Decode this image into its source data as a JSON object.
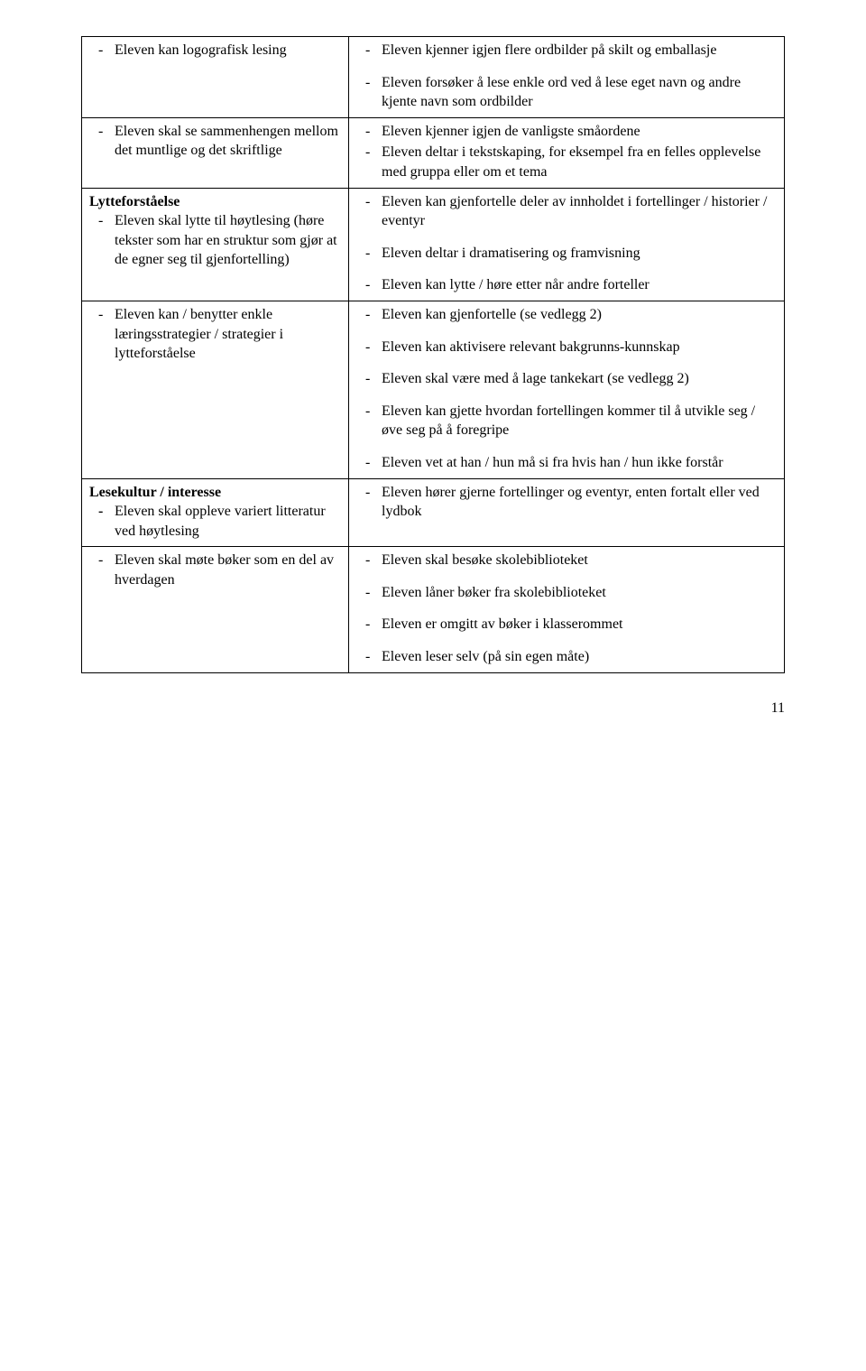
{
  "rows": [
    {
      "left": {
        "items": [
          {
            "text": "Eleven kan logografisk lesing"
          }
        ]
      },
      "right": {
        "items": [
          {
            "text": "Eleven kjenner igjen flere ordbilder på skilt og emballasje"
          },
          {
            "text": "Eleven forsøker å lese enkle ord ved å lese eget navn og andre kjente navn som ordbilder",
            "spaced": true
          }
        ]
      }
    },
    {
      "left": {
        "items": [
          {
            "text": "Eleven skal se sammenhengen mellom det muntlige og det skriftlige"
          }
        ]
      },
      "right": {
        "items": [
          {
            "text": "Eleven kjenner igjen de vanligste småordene"
          },
          {
            "text": "Eleven deltar i tekstskaping, for eksempel fra en felles opplevelse med gruppa eller om et tema"
          }
        ]
      }
    },
    {
      "heading": "Lytteforståelse",
      "left": {
        "items": [
          {
            "text": "Eleven skal lytte til høytlesing (høre tekster som har en struktur som gjør at de egner seg til gjenfortelling)"
          }
        ]
      },
      "right": {
        "items": [
          {
            "text": "Eleven kan gjenfortelle deler av innholdet i fortellinger / historier / eventyr"
          },
          {
            "text": "Eleven deltar i dramatisering og framvisning",
            "spaced": true
          },
          {
            "text": "Eleven kan lytte / høre etter når andre forteller",
            "spaced": true
          }
        ]
      }
    },
    {
      "left": {
        "items": [
          {
            "text": "Eleven kan / benytter enkle læringsstrategier / strategier i lytteforståelse"
          }
        ]
      },
      "right": {
        "items": [
          {
            "text": "Eleven kan gjenfortelle (se vedlegg 2)"
          },
          {
            "text": "Eleven kan aktivisere relevant bakgrunns-kunnskap",
            "spaced": true
          },
          {
            "text": "Eleven skal være med å lage tankekart (se vedlegg 2)",
            "spaced": true
          },
          {
            "text": "Eleven kan gjette hvordan fortellingen kommer til å utvikle seg / øve seg på å foregripe",
            "spaced": true
          },
          {
            "text": "Eleven vet at han / hun må si fra hvis han / hun ikke forstår",
            "spaced": true
          }
        ]
      }
    },
    {
      "heading": "Lesekultur / interesse",
      "left": {
        "items": [
          {
            "text": "Eleven skal oppleve variert litteratur ved høytlesing",
            "bold": true
          }
        ]
      },
      "right": {
        "items": [
          {
            "text": "Eleven hører gjerne fortellinger og eventyr, enten fortalt eller ved lydbok"
          }
        ]
      }
    },
    {
      "left": {
        "items": [
          {
            "text": "Eleven skal møte bøker som en del av hverdagen"
          }
        ]
      },
      "right": {
        "items": [
          {
            "text": "Eleven skal besøke skolebiblioteket"
          },
          {
            "text": "Eleven låner bøker fra skolebiblioteket",
            "spaced": true
          },
          {
            "text": "Eleven er omgitt av bøker i klasserommet",
            "spaced": true
          },
          {
            "text": "Eleven leser selv (på sin egen måte)",
            "spaced": true
          }
        ]
      }
    }
  ],
  "pageNumber": "11"
}
